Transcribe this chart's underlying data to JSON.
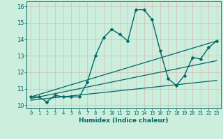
{
  "xlabel": "Humidex (Indice chaleur)",
  "background_color": "#cceedd",
  "grid_color": "#dd9999",
  "line_color": "#006666",
  "xlim": [
    -0.5,
    23.5
  ],
  "ylim": [
    9.8,
    16.3
  ],
  "xticks": [
    0,
    1,
    2,
    3,
    4,
    5,
    6,
    7,
    8,
    9,
    10,
    11,
    12,
    13,
    14,
    15,
    16,
    17,
    18,
    19,
    20,
    21,
    22,
    23
  ],
  "yticks": [
    10,
    11,
    12,
    13,
    14,
    15,
    16
  ],
  "series": [
    {
      "x": [
        0,
        1,
        2,
        3,
        4,
        5,
        6,
        7,
        8,
        9,
        10,
        11,
        12,
        13,
        14,
        15,
        16,
        17,
        18,
        19,
        20,
        21,
        22,
        23
      ],
      "y": [
        10.5,
        10.5,
        10.2,
        10.6,
        10.5,
        10.5,
        10.5,
        11.4,
        13.0,
        14.1,
        14.6,
        14.3,
        13.9,
        15.8,
        15.8,
        15.2,
        13.3,
        11.6,
        11.2,
        11.8,
        12.9,
        12.8,
        13.5,
        13.9
      ],
      "marker": "D",
      "markersize": 2.5,
      "linestyle": "-",
      "linewidth": 1.0
    },
    {
      "x": [
        0,
        23
      ],
      "y": [
        10.5,
        13.9
      ],
      "marker": null,
      "linestyle": "-",
      "linewidth": 0.9
    },
    {
      "x": [
        0,
        23
      ],
      "y": [
        10.4,
        12.7
      ],
      "marker": null,
      "linestyle": "-",
      "linewidth": 0.9
    },
    {
      "x": [
        0,
        23
      ],
      "y": [
        10.3,
        11.5
      ],
      "marker": null,
      "linestyle": "-",
      "linewidth": 0.9
    }
  ]
}
